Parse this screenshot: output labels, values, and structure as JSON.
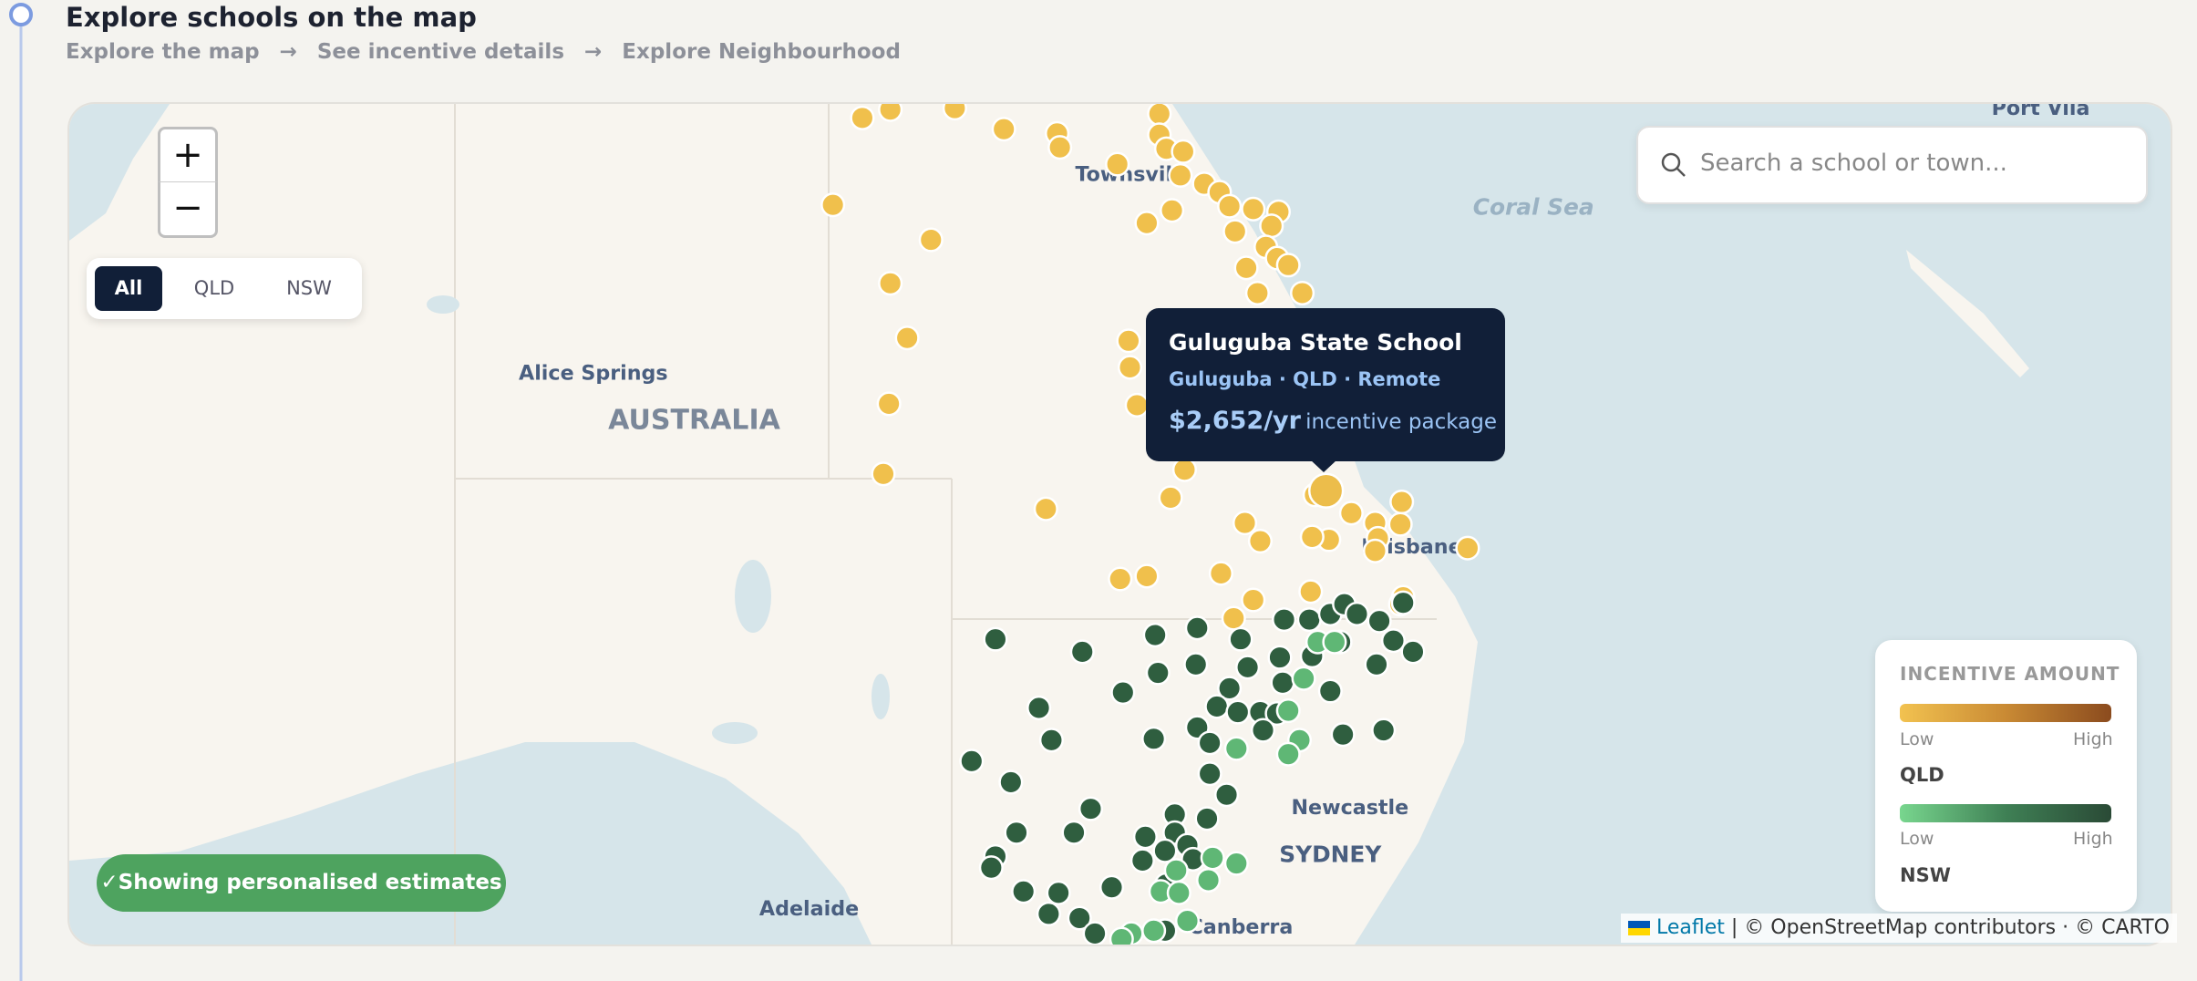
{
  "header": {
    "title": "Explore schools on the map",
    "steps": [
      "Explore the map",
      "See incentive details",
      "Explore Neighbourhood"
    ],
    "separator": "→"
  },
  "map": {
    "zoom_in": "+",
    "zoom_out": "−",
    "filters": [
      "All",
      "QLD",
      "NSW"
    ],
    "search_placeholder": "Search a school or town...",
    "place_labels": [
      "Townsville",
      "Coral Sea",
      "Port Vila",
      "Alice Springs",
      "AUSTRALIA",
      "Brisbane",
      "Newcastle",
      "SYDNEY",
      "Adelaide",
      "Canberra"
    ],
    "tooltip": {
      "name": "Guluguba State School",
      "meta": "Guluguba · QLD · Remote",
      "amount": "$2,652/yr",
      "suffix": "incentive package"
    },
    "legend": {
      "title": "INCENTIVE AMOUNT",
      "scales": [
        {
          "low": "Low",
          "high": "High",
          "label": "QLD"
        },
        {
          "low": "Low",
          "high": "High",
          "label": "NSW"
        }
      ]
    },
    "badge": "✓Showing personalised estimates",
    "attribution": {
      "leaflet": "Leaflet",
      "rest": "| © OpenStreetMap contributors · © CARTO"
    }
  }
}
